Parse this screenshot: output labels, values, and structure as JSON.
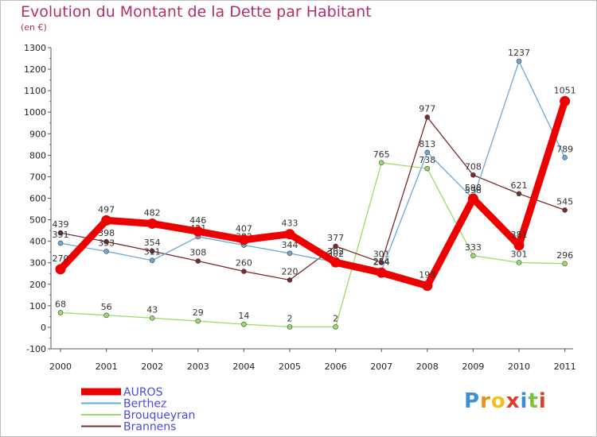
{
  "chart_data": {
    "type": "line",
    "title": "Evolution du Montant de la Dette par Habitant",
    "subtitle": "(en €)",
    "x": [
      "2000",
      "2001",
      "2002",
      "2003",
      "2004",
      "2005",
      "2006",
      "2007",
      "2008",
      "2009",
      "2010",
      "2011"
    ],
    "ylim": [
      -100,
      1300
    ],
    "yticks": [
      -100,
      0,
      100,
      200,
      300,
      400,
      500,
      600,
      700,
      800,
      900,
      1000,
      1100,
      1200,
      1300
    ],
    "grid": false,
    "legend_position": "bottom-left",
    "series": [
      {
        "name": "Brouqueyran",
        "color": "#99dd66",
        "values": [
          68,
          56,
          43,
          29,
          14,
          2,
          2,
          765,
          738,
          333,
          301,
          296
        ]
      },
      {
        "name": "Brannens",
        "color": "#7a2a2a",
        "values": [
          439,
          398,
          354,
          308,
          260,
          220,
          377,
          301,
          977,
          708,
          621,
          545
        ]
      },
      {
        "name": "Berthez",
        "color": "#6aa8d8",
        "values": [
          391,
          353,
          311,
          421,
          382,
          344,
          302,
          264,
          813,
          598,
          1237,
          789
        ]
      },
      {
        "name": "AUROS",
        "color": "#ee0000",
        "values": [
          270,
          497,
          482,
          446,
          407,
          433,
          302,
          254,
          193,
          598,
          381,
          1051
        ]
      }
    ]
  },
  "legend": [
    "AUROS",
    "Berthez",
    "Brouqueyran",
    "Brannens"
  ],
  "logo": {
    "letters": [
      "P",
      "r",
      "o",
      "x",
      "i",
      "t",
      "i"
    ],
    "colors": [
      "#3a8fd8",
      "#f08a1c",
      "#f0c020",
      "#e03a2a",
      "#3a8fd8",
      "#7cc242",
      "#e03a2a"
    ]
  }
}
